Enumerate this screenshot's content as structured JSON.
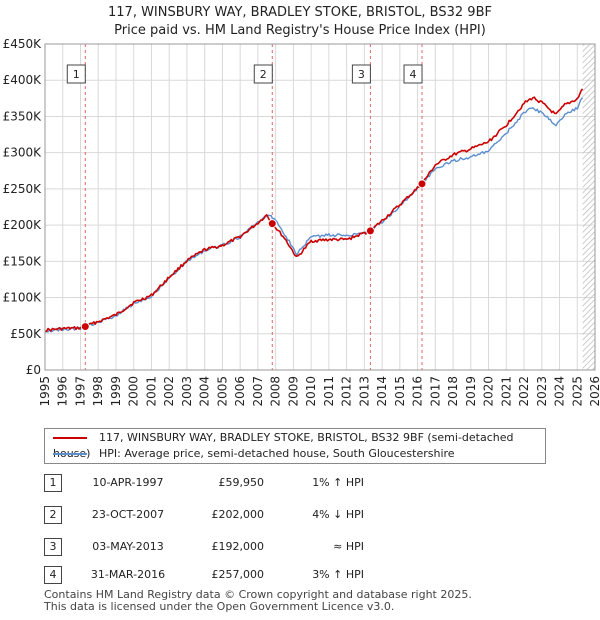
{
  "chart_data": {
    "type": "line",
    "title": "117, WINSBURY WAY, BRADLEY STOKE, BRISTOL, BS32 9BF",
    "subtitle": "Price paid vs. HM Land Registry's House Price Index (HPI)",
    "xlabel": "",
    "ylabel": "",
    "xlim": [
      1995,
      2026
    ],
    "ylim": [
      0,
      450000
    ],
    "x_ticks": [
      "1995",
      "1996",
      "1997",
      "1998",
      "1999",
      "2000",
      "2001",
      "2002",
      "2003",
      "2004",
      "2005",
      "2006",
      "2007",
      "2008",
      "2009",
      "2010",
      "2011",
      "2012",
      "2013",
      "2014",
      "2015",
      "2016",
      "2017",
      "2018",
      "2019",
      "2020",
      "2021",
      "2022",
      "2023",
      "2024",
      "2025",
      "2026"
    ],
    "y_ticks": [
      {
        "value": 0,
        "label": "£0"
      },
      {
        "value": 50000,
        "label": "£50K"
      },
      {
        "value": 100000,
        "label": "£100K"
      },
      {
        "value": 150000,
        "label": "£150K"
      },
      {
        "value": 200000,
        "label": "£200K"
      },
      {
        "value": 250000,
        "label": "£250K"
      },
      {
        "value": 300000,
        "label": "£300K"
      },
      {
        "value": 350000,
        "label": "£350K"
      },
      {
        "value": 400000,
        "label": "£400K"
      },
      {
        "value": 450000,
        "label": "£450K"
      }
    ],
    "grid": true,
    "series": [
      {
        "name": "117, WINSBURY WAY, BRADLEY STOKE, BRISTOL, BS32 9BF (semi-detached house)",
        "color": "#cc0000",
        "x": [
          1995,
          1996,
          1997,
          1997.27,
          1998,
          1999,
          2000,
          2001,
          2002,
          2003,
          2004,
          2005,
          2006,
          2007,
          2007.5,
          2007.81,
          2008.5,
          2009.2,
          2010,
          2011,
          2012,
          2013.34,
          2014,
          2015,
          2016.25,
          2017,
          2018,
          2019,
          2020,
          2021,
          2022,
          2022.5,
          2023,
          2023.8,
          2024.3,
          2025,
          2025.3
        ],
        "y": [
          55000,
          57000,
          58000,
          59950,
          67000,
          76000,
          93000,
          103000,
          128000,
          151000,
          166000,
          172000,
          184000,
          203000,
          214000,
          202000,
          182000,
          155000,
          178000,
          180000,
          180000,
          192000,
          206000,
          228000,
          257000,
          283000,
          297000,
          305000,
          315000,
          338000,
          368000,
          376000,
          369000,
          352000,
          366000,
          374000,
          388000
        ]
      },
      {
        "name": "HPI: Average price, semi-detached house, South Gloucestershire",
        "color": "#5b8fd0",
        "x": [
          1995,
          1996,
          1997,
          1998,
          1999,
          2000,
          2001,
          2002,
          2003,
          2004,
          2005,
          2006,
          2007,
          2007.5,
          2008,
          2008.5,
          2009.2,
          2010,
          2011,
          2012,
          2013,
          2014,
          2015,
          2016,
          2017,
          2018,
          2019,
          2020,
          2021,
          2022,
          2022.5,
          2023,
          2023.8,
          2024.3,
          2025,
          2025.3
        ],
        "y": [
          54000,
          56000,
          57500,
          66000,
          75000,
          92000,
          102000,
          127000,
          150000,
          165000,
          172000,
          184000,
          204000,
          214000,
          208000,
          188000,
          160000,
          184000,
          186000,
          186000,
          190000,
          204000,
          226000,
          251000,
          277000,
          289000,
          294000,
          302000,
          327000,
          355000,
          362000,
          355000,
          338000,
          352000,
          362000,
          376000
        ]
      }
    ],
    "sale_markers": [
      {
        "label": "1",
        "x": 1997.27,
        "y": 59950
      },
      {
        "label": "2",
        "x": 2007.81,
        "y": 202000
      },
      {
        "label": "3",
        "x": 2013.34,
        "y": 192000
      },
      {
        "label": "4",
        "x": 2016.25,
        "y": 257000
      }
    ],
    "annotations": [
      "1",
      "2",
      "3",
      "4"
    ]
  },
  "legend": {
    "items": [
      {
        "label": "117, WINSBURY WAY, BRADLEY STOKE, BRISTOL, BS32 9BF (semi-detached house)",
        "color": "#cc0000"
      },
      {
        "label": "HPI: Average price, semi-detached house, South Gloucestershire",
        "color": "#5b8fd0"
      }
    ]
  },
  "transactions": [
    {
      "num": "1",
      "date": "10-APR-1997",
      "price": "£59,950",
      "hpi": "1% ↑ HPI"
    },
    {
      "num": "2",
      "date": "23-OCT-2007",
      "price": "£202,000",
      "hpi": "4% ↓ HPI"
    },
    {
      "num": "3",
      "date": "03-MAY-2013",
      "price": "£192,000",
      "hpi": "≈ HPI"
    },
    {
      "num": "4",
      "date": "31-MAR-2016",
      "price": "£257,000",
      "hpi": "3% ↑ HPI"
    }
  ],
  "footer": {
    "line1": "Contains HM Land Registry data © Crown copyright and database right 2025.",
    "line2": "This data is licensed under the Open Government Licence v3.0."
  }
}
